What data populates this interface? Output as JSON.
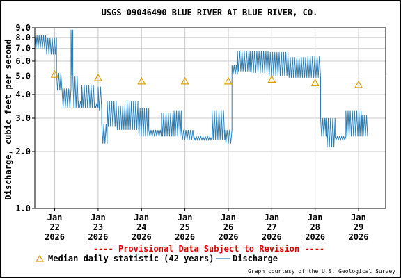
{
  "chart_data": {
    "type": "line",
    "title": "USGS 09046490 BLUE RIVER AT BLUE RIVER, CO.",
    "xlabel": "",
    "ylabel": "Discharge, cubic feet per second",
    "yscale": "log",
    "ylim": [
      1.0,
      9.0
    ],
    "y_ticks": [
      "1.0",
      "2.0",
      "3.0",
      "4.0",
      "5.0",
      "6.0",
      "7.0",
      "8.0",
      "9.0"
    ],
    "y_tick_values": [
      1.0,
      2.0,
      3.0,
      4.0,
      5.0,
      6.0,
      7.0,
      8.0,
      9.0
    ],
    "xlim": [
      "2026-01-21T13:00",
      "2026-01-29T15:00"
    ],
    "x_ticks": [
      {
        "month": "Jan",
        "day": "22",
        "year": "2026"
      },
      {
        "month": "Jan",
        "day": "23",
        "year": "2026"
      },
      {
        "month": "Jan",
        "day": "24",
        "year": "2026"
      },
      {
        "month": "Jan",
        "day": "25",
        "year": "2026"
      },
      {
        "month": "Jan",
        "day": "26",
        "year": "2026"
      },
      {
        "month": "Jan",
        "day": "27",
        "year": "2026"
      },
      {
        "month": "Jan",
        "day": "28",
        "year": "2026"
      },
      {
        "month": "Jan",
        "day": "29",
        "year": "2026"
      }
    ],
    "x_tick_dates": [
      "2026-01-22",
      "2026-01-23",
      "2026-01-24",
      "2026-01-25",
      "2026-01-26",
      "2026-01-27",
      "2026-01-28",
      "2026-01-29"
    ],
    "grid": true,
    "legend_position": "bottom",
    "series": [
      {
        "name": "Median daily statistic (42 years)",
        "marker": "triangle",
        "color": "#e0a000",
        "x": [
          "2026-01-22",
          "2026-01-23",
          "2026-01-24",
          "2026-01-25",
          "2026-01-26",
          "2026-01-27",
          "2026-01-28",
          "2026-01-29"
        ],
        "values": [
          5.1,
          4.9,
          4.7,
          4.7,
          4.7,
          4.8,
          4.6,
          4.5
        ]
      },
      {
        "name": "Discharge",
        "marker": "line",
        "color": "#2a7fb8",
        "segments": [
          {
            "start": "2026-01-21T13:00",
            "end": "2026-01-21T19:00",
            "low": 7.0,
            "high": 8.2
          },
          {
            "start": "2026-01-21T19:00",
            "end": "2026-01-22T01:00",
            "low": 6.5,
            "high": 8.0
          },
          {
            "start": "2026-01-22T01:00",
            "end": "2026-01-22T04:00",
            "low": 4.2,
            "high": 5.2
          },
          {
            "start": "2026-01-22T04:00",
            "end": "2026-01-22T09:00",
            "low": 3.4,
            "high": 4.3
          },
          {
            "start": "2026-01-22T09:00",
            "end": "2026-01-22T10:00",
            "low": 5.0,
            "high": 8.8
          },
          {
            "start": "2026-01-22T10:00",
            "end": "2026-01-22T13:00",
            "low": 3.4,
            "high": 5.0
          },
          {
            "start": "2026-01-22T13:00",
            "end": "2026-01-22T15:00",
            "low": 3.4,
            "high": 3.7
          },
          {
            "start": "2026-01-22T15:00",
            "end": "2026-01-22T22:00",
            "low": 3.4,
            "high": 4.5
          },
          {
            "start": "2026-01-22T22:00",
            "end": "2026-01-22T23:59",
            "low": 3.4,
            "high": 3.6
          },
          {
            "start": "2026-01-23T00:00",
            "end": "2026-01-23T02:00",
            "low": 3.3,
            "high": 4.4
          },
          {
            "start": "2026-01-23T02:00",
            "end": "2026-01-23T05:00",
            "low": 2.2,
            "high": 2.8
          },
          {
            "start": "2026-01-23T05:00",
            "end": "2026-01-23T10:00",
            "low": 2.7,
            "high": 3.7
          },
          {
            "start": "2026-01-23T10:00",
            "end": "2026-01-23T16:00",
            "low": 2.6,
            "high": 3.5
          },
          {
            "start": "2026-01-23T16:00",
            "end": "2026-01-23T22:00",
            "low": 2.6,
            "high": 3.7
          },
          {
            "start": "2026-01-23T22:00",
            "end": "2026-01-24T04:00",
            "low": 2.4,
            "high": 3.4
          },
          {
            "start": "2026-01-24T04:00",
            "end": "2026-01-24T11:00",
            "low": 2.4,
            "high": 2.6
          },
          {
            "start": "2026-01-24T11:00",
            "end": "2026-01-24T18:00",
            "low": 2.4,
            "high": 3.2
          },
          {
            "start": "2026-01-24T18:00",
            "end": "2026-01-24T22:00",
            "low": 2.4,
            "high": 3.3
          },
          {
            "start": "2026-01-24T22:00",
            "end": "2026-01-25T05:00",
            "low": 2.3,
            "high": 2.6
          },
          {
            "start": "2026-01-25T05:00",
            "end": "2026-01-25T15:00",
            "low": 2.3,
            "high": 2.4
          },
          {
            "start": "2026-01-25T15:00",
            "end": "2026-01-25T22:00",
            "low": 2.3,
            "high": 3.3
          },
          {
            "start": "2026-01-25T22:00",
            "end": "2026-01-26T02:00",
            "low": 2.2,
            "high": 2.6
          },
          {
            "start": "2026-01-26T02:00",
            "end": "2026-01-26T05:00",
            "low": 5.1,
            "high": 5.7
          },
          {
            "start": "2026-01-26T05:00",
            "end": "2026-01-26T12:00",
            "low": 5.3,
            "high": 6.8
          },
          {
            "start": "2026-01-26T12:00",
            "end": "2026-01-26T22:00",
            "low": 5.2,
            "high": 6.8
          },
          {
            "start": "2026-01-26T22:00",
            "end": "2026-01-27T09:00",
            "low": 5.0,
            "high": 6.7
          },
          {
            "start": "2026-01-27T09:00",
            "end": "2026-01-27T20:00",
            "low": 4.9,
            "high": 6.3
          },
          {
            "start": "2026-01-27T20:00",
            "end": "2026-01-28T03:00",
            "low": 4.9,
            "high": 6.4
          },
          {
            "start": "2026-01-28T03:00",
            "end": "2026-01-28T06:00",
            "low": 2.4,
            "high": 3.0
          },
          {
            "start": "2026-01-28T06:00",
            "end": "2026-01-28T11:00",
            "low": 2.1,
            "high": 3.0
          },
          {
            "start": "2026-01-28T11:00",
            "end": "2026-01-28T17:00",
            "low": 2.3,
            "high": 2.4
          },
          {
            "start": "2026-01-28T17:00",
            "end": "2026-01-29T02:00",
            "low": 2.4,
            "high": 3.3
          },
          {
            "start": "2026-01-29T02:00",
            "end": "2026-01-29T05:00",
            "low": 2.4,
            "high": 3.1
          }
        ]
      }
    ],
    "annotations": {
      "provisional": "---- Provisional Data Subject to Revision ----",
      "credit": "Graph courtesy of the U.S. Geological Survey"
    }
  }
}
